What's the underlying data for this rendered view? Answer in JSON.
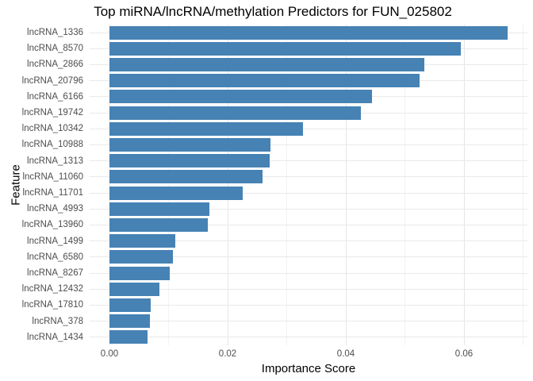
{
  "title": "Top miRNA/lncRNA/methylation Predictors for FUN_025802",
  "chart_data": {
    "type": "bar",
    "orientation": "horizontal",
    "title": "Top miRNA/lncRNA/methylation Predictors for FUN_025802",
    "xlabel": "Importance Score",
    "ylabel": "Feature",
    "categories": [
      "lncRNA_1336",
      "lncRNA_8570",
      "lncRNA_2866",
      "lncRNA_20796",
      "lncRNA_6166",
      "lncRNA_19742",
      "lncRNA_10342",
      "lncRNA_10988",
      "lncRNA_1313",
      "lncRNA_11060",
      "lncRNA_11701",
      "lncRNA_4993",
      "lncRNA_13960",
      "lncRNA_1499",
      "lncRNA_6580",
      "lncRNA_8267",
      "lncRNA_12432",
      "lncRNA_17810",
      "lncRNA_378",
      "lncRNA_1434"
    ],
    "values": [
      0.0674,
      0.0595,
      0.0533,
      0.0525,
      0.0444,
      0.0426,
      0.0328,
      0.0272,
      0.0271,
      0.0259,
      0.0226,
      0.0169,
      0.0167,
      0.0111,
      0.0108,
      0.0102,
      0.0085,
      0.007,
      0.0068,
      0.0064
    ],
    "xlim": [
      0,
      0.07
    ],
    "x_major_ticks": [
      0,
      0.02,
      0.04,
      0.06
    ],
    "x_tick_labels": [
      "0.00",
      "0.02",
      "0.04",
      "0.06"
    ],
    "x_minor_ticks": [
      0.01,
      0.03,
      0.05,
      0.07
    ],
    "grid": true,
    "legend": false,
    "bar_color": "#4682B4",
    "background_color": "#FFFFFF",
    "major_grid_color": "#E6E6E6",
    "minor_grid_color": "#F2F2F2",
    "axis_text_color": "#4D4D4D",
    "title_color": "#000000"
  }
}
